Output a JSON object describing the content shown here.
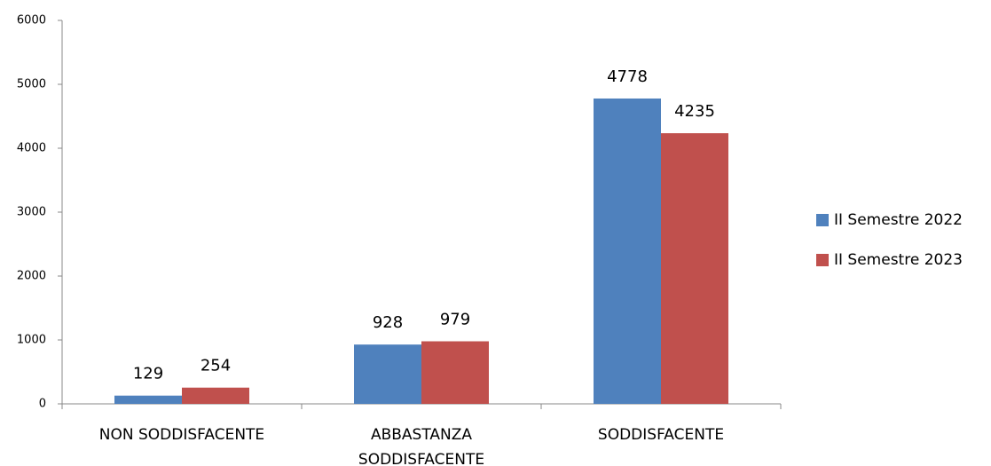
{
  "chart_data": {
    "type": "bar",
    "categories": [
      "NON SODDISFACENTE",
      "ABBASTANZA SODDISFACENTE",
      "SODDISFACENTE"
    ],
    "series": [
      {
        "name": "II Semestre 2022",
        "color": "#4f81bd",
        "values": [
          129,
          928,
          4778
        ]
      },
      {
        "name": "II Semestre 2023",
        "color": "#c0504d",
        "values": [
          254,
          979,
          4235
        ]
      }
    ],
    "ylim": [
      0,
      6000
    ],
    "yticks": [
      0,
      1000,
      2000,
      3000,
      4000,
      5000,
      6000
    ],
    "grid": false,
    "legend": "right"
  }
}
